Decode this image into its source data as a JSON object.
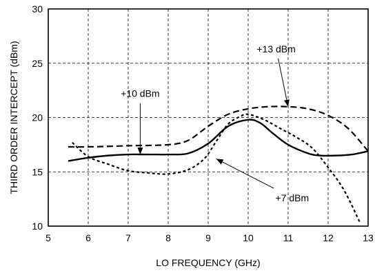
{
  "chart_data": {
    "type": "line",
    "xlabel": "LO FREQUENCY (GHz)",
    "ylabel": "THIRD ORDER INTERCEPT (dBm)",
    "xlim": [
      5,
      13
    ],
    "ylim": [
      10,
      30
    ],
    "x_ticks": [
      5,
      6,
      7,
      8,
      9,
      10,
      11,
      12,
      13
    ],
    "x_tick_labels": [
      "5",
      "6",
      "7",
      "8",
      "9",
      "10",
      "11",
      "12",
      "13"
    ],
    "y_ticks": [
      10,
      15,
      20,
      25,
      30
    ],
    "y_tick_labels": [
      "10",
      "15",
      "20",
      "25",
      "30"
    ],
    "grid": true,
    "series": [
      {
        "name": "+10 dBm",
        "style": "solid",
        "x": [
          5.5,
          6.0,
          6.5,
          7.0,
          7.5,
          8.0,
          8.5,
          9.0,
          9.5,
          10.0,
          10.3,
          10.6,
          11.0,
          11.5,
          11.8,
          12.2,
          12.6,
          13.0
        ],
        "y": [
          16.0,
          16.3,
          16.5,
          16.6,
          16.6,
          16.6,
          16.7,
          17.6,
          19.2,
          19.8,
          19.5,
          18.6,
          17.5,
          16.7,
          16.5,
          16.5,
          16.6,
          16.9
        ]
      },
      {
        "name": "+13 dBm",
        "style": "dashed",
        "x": [
          5.5,
          6.0,
          7.0,
          8.0,
          8.5,
          9.0,
          9.5,
          10.0,
          10.5,
          11.0,
          11.5,
          12.0,
          12.5,
          13.0
        ],
        "y": [
          17.3,
          17.3,
          17.4,
          17.5,
          17.9,
          19.2,
          20.3,
          20.8,
          21.0,
          21.0,
          20.8,
          20.2,
          19.0,
          16.9
        ]
      },
      {
        "name": "+7 dBm",
        "style": "dotted",
        "x": [
          5.6,
          6.0,
          6.5,
          7.0,
          7.5,
          8.0,
          8.5,
          8.9,
          9.2,
          9.5,
          9.8,
          10.0,
          10.4,
          10.8,
          11.2,
          11.6,
          12.0,
          12.4,
          12.8
        ],
        "y": [
          17.7,
          16.4,
          15.7,
          15.1,
          14.9,
          14.8,
          15.2,
          16.2,
          17.8,
          19.4,
          20.1,
          20.3,
          19.8,
          19.0,
          18.2,
          17.2,
          15.4,
          13.3,
          10.3
        ]
      }
    ],
    "annotations": [
      {
        "text": "+13 dBm",
        "x": 10.7,
        "y": 26.0,
        "arrow_to": [
          11.0,
          21.0
        ]
      },
      {
        "text": "+10 dBm",
        "x": 7.3,
        "y": 21.9,
        "arrow_to": [
          7.3,
          16.6
        ]
      },
      {
        "text": "+7 dBm",
        "x": 11.1,
        "y": 12.3,
        "arrow_to": [
          9.2,
          16.2
        ]
      }
    ]
  }
}
